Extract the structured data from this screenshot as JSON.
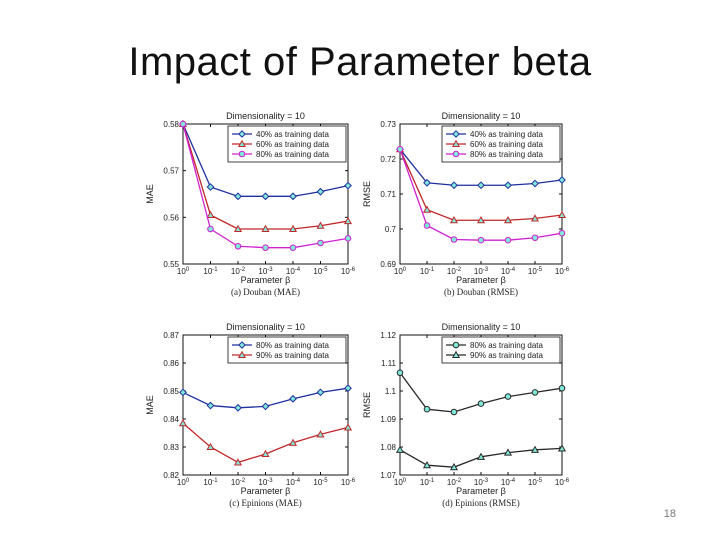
{
  "slide": {
    "title": "Impact of Parameter beta",
    "page_number": "18"
  },
  "chart_data": [
    {
      "type": "line",
      "title": "Dimensionality = 10",
      "caption": "(a) Douban (MAE)",
      "xlabel": "Parameter β",
      "ylabel": "MAE",
      "x_ticks": [
        "10^0",
        "10^-1",
        "10^-2",
        "10^-3",
        "10^-4",
        "10^-5",
        "10^-6"
      ],
      "ylim": [
        0.55,
        0.58
      ],
      "y_ticks": [
        "0.55",
        "0.56",
        "0.57",
        "0.58"
      ],
      "legend_position": "top-right",
      "series": [
        {
          "name": "40% as training data",
          "color": "#1f2f9e",
          "marker": "diamond",
          "values": [
            0.58,
            0.5665,
            0.5645,
            0.5645,
            0.5645,
            0.5655,
            0.5668
          ]
        },
        {
          "name": "60% as training data",
          "color": "#c0282a",
          "marker": "triangle",
          "values": [
            0.58,
            0.5605,
            0.5575,
            0.5575,
            0.5575,
            0.5582,
            0.5592
          ]
        },
        {
          "name": "80% as training data",
          "color": "#d020d0",
          "marker": "circle",
          "values": [
            0.58,
            0.5575,
            0.5538,
            0.5535,
            0.5535,
            0.5545,
            0.5555
          ]
        }
      ]
    },
    {
      "type": "line",
      "title": "Dimensionality = 10",
      "caption": "(b) Douban (RMSE)",
      "xlabel": "Parameter β",
      "ylabel": "RMSE",
      "x_ticks": [
        "10^0",
        "10^-1",
        "10^-2",
        "10^-3",
        "10^-4",
        "10^-5",
        "10^-6"
      ],
      "ylim": [
        0.69,
        0.73
      ],
      "y_ticks": [
        "0.69",
        "0.7",
        "0.71",
        "0.72",
        "0.73"
      ],
      "legend_position": "top-right",
      "series": [
        {
          "name": "40% as training data",
          "color": "#1f2f9e",
          "marker": "diamond",
          "values": [
            0.7228,
            0.7132,
            0.7125,
            0.7125,
            0.7125,
            0.713,
            0.714
          ]
        },
        {
          "name": "60% as training data",
          "color": "#c0282a",
          "marker": "triangle",
          "values": [
            0.7228,
            0.7055,
            0.7025,
            0.7025,
            0.7025,
            0.703,
            0.704
          ]
        },
        {
          "name": "80% as training data",
          "color": "#d020d0",
          "marker": "circle",
          "values": [
            0.7228,
            0.701,
            0.697,
            0.6968,
            0.6968,
            0.6975,
            0.6988
          ]
        }
      ]
    },
    {
      "type": "line",
      "title": "Dimensionality = 10",
      "caption": "(c) Epinions (MAE)",
      "xlabel": "Parameter β",
      "ylabel": "MAE",
      "x_ticks": [
        "10^0",
        "10^-1",
        "10^-2",
        "10^-3",
        "10^-4",
        "10^-5",
        "10^-6"
      ],
      "ylim": [
        0.82,
        0.87
      ],
      "y_ticks": [
        "0.82",
        "0.83",
        "0.84",
        "0.85",
        "0.86",
        "0.87"
      ],
      "legend_position": "top-right",
      "series": [
        {
          "name": "80% as training data",
          "color": "#1f2f9e",
          "marker": "diamond",
          "values": [
            0.8495,
            0.8448,
            0.844,
            0.8445,
            0.8472,
            0.8495,
            0.851
          ]
        },
        {
          "name": "90% as training data",
          "color": "#c0282a",
          "marker": "triangle",
          "values": [
            0.8385,
            0.83,
            0.8245,
            0.8275,
            0.8315,
            0.8345,
            0.837
          ]
        }
      ]
    },
    {
      "type": "line",
      "title": "Dimensionality = 10",
      "caption": "(d) Epinions (RMSE)",
      "xlabel": "Parameter β",
      "ylabel": "RMSE",
      "x_ticks": [
        "10^0",
        "10^-1",
        "10^-2",
        "10^-3",
        "10^-4",
        "10^-5",
        "10^-6"
      ],
      "ylim": [
        1.07,
        1.12
      ],
      "y_ticks": [
        "1.07",
        "1.08",
        "1.09",
        "1.1",
        "1.11",
        "1.12"
      ],
      "legend_position": "top-right",
      "series": [
        {
          "name": "80% as training data",
          "color": "#2a2a2a",
          "marker": "circle",
          "values": [
            1.1065,
            1.0935,
            1.0925,
            1.0955,
            1.098,
            1.0995,
            1.101
          ]
        },
        {
          "name": "90% as training data",
          "color": "#2a2a2a",
          "marker": "triangle",
          "values": [
            1.079,
            1.0735,
            1.0728,
            1.0765,
            1.078,
            1.079,
            1.0795
          ]
        }
      ]
    }
  ]
}
